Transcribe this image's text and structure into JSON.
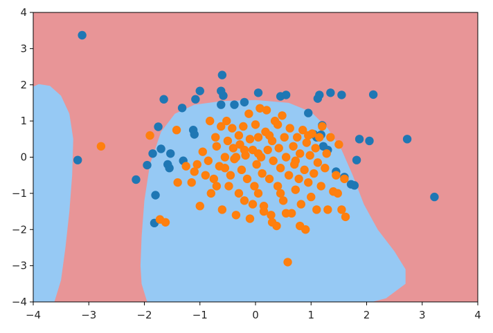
{
  "chart_data": {
    "type": "scatter",
    "title": "",
    "xlabel": "",
    "ylabel": "",
    "xlim": [
      -4,
      4
    ],
    "ylim": [
      -4,
      4
    ],
    "grid": false,
    "x_ticks": [
      -4,
      -3,
      -2,
      -1,
      0,
      1,
      2,
      3,
      4
    ],
    "y_ticks": [
      -4,
      -3,
      -2,
      -1,
      0,
      1,
      2,
      3,
      4
    ],
    "x_tick_labels": [
      "−4",
      "−3",
      "−2",
      "−1",
      "0",
      "1",
      "2",
      "3",
      "4"
    ],
    "y_tick_labels": [
      "−4",
      "−3",
      "−2",
      "−1",
      "0",
      "1",
      "2",
      "3",
      "4"
    ],
    "background_regions": [
      {
        "class": "blue",
        "color": "#96c9f4",
        "boundary": [
          [
            -3.9,
            -4
          ],
          [
            -4,
            -4
          ],
          [
            -4,
            1.95
          ],
          [
            -3.9,
            2.02
          ],
          [
            -3.7,
            1.97
          ],
          [
            -3.5,
            1.7
          ],
          [
            -3.35,
            1.2
          ],
          [
            -3.28,
            0.5
          ],
          [
            -3.3,
            -0.5
          ],
          [
            -3.35,
            -1.5
          ],
          [
            -3.42,
            -2.5
          ],
          [
            -3.5,
            -3.4
          ],
          [
            -3.62,
            -4
          ]
        ]
      },
      {
        "class": "blue",
        "color": "#96c9f4",
        "boundary": [
          [
            -1.95,
            -4
          ],
          [
            -2.05,
            -3.5
          ],
          [
            -2.07,
            -3.0
          ],
          [
            -2.05,
            -2.2
          ],
          [
            -2.0,
            -1.2
          ],
          [
            -1.9,
            -0.2
          ],
          [
            -1.7,
            0.7
          ],
          [
            -1.45,
            1.2
          ],
          [
            -1.1,
            1.45
          ],
          [
            -0.6,
            1.55
          ],
          [
            0,
            1.58
          ],
          [
            0.6,
            1.5
          ],
          [
            1.0,
            1.25
          ],
          [
            1.3,
            0.8
          ],
          [
            1.55,
            0.2
          ],
          [
            1.75,
            -0.5
          ],
          [
            1.95,
            -1.3
          ],
          [
            2.2,
            -2.0
          ],
          [
            2.5,
            -2.6
          ],
          [
            2.7,
            -3.1
          ],
          [
            2.7,
            -3.5
          ],
          [
            2.35,
            -3.9
          ],
          [
            2.1,
            -4
          ]
        ]
      }
    ],
    "region_colors": {
      "red": "#e89597",
      "blue": "#96c9f4"
    },
    "series": [
      {
        "color": "#1f77b4",
        "points": [
          [
            -3.12,
            3.37
          ],
          [
            -3.2,
            -0.08
          ],
          [
            -0.6,
            2.27
          ],
          [
            -0.62,
            1.83
          ],
          [
            -0.58,
            1.7
          ],
          [
            -1.0,
            1.83
          ],
          [
            -1.08,
            1.6
          ],
          [
            -1.32,
            1.36
          ],
          [
            -1.65,
            1.6
          ],
          [
            -1.75,
            0.84
          ],
          [
            -1.85,
            0.1
          ],
          [
            -1.95,
            -0.22
          ],
          [
            -2.15,
            -0.62
          ],
          [
            -1.7,
            0.23
          ],
          [
            -1.58,
            -0.2
          ],
          [
            -1.55,
            -0.3
          ],
          [
            -1.53,
            0.1
          ],
          [
            -1.3,
            -0.1
          ],
          [
            -1.12,
            0.75
          ],
          [
            -1.1,
            0.63
          ],
          [
            -1.8,
            -1.05
          ],
          [
            -1.82,
            -1.82
          ],
          [
            -0.62,
            1.45
          ],
          [
            -0.38,
            1.45
          ],
          [
            -0.2,
            1.52
          ],
          [
            0.05,
            1.78
          ],
          [
            0.45,
            1.68
          ],
          [
            0.55,
            1.72
          ],
          [
            0.95,
            1.22
          ],
          [
            1.15,
            1.72
          ],
          [
            1.12,
            1.62
          ],
          [
            1.35,
            1.78
          ],
          [
            1.55,
            1.72
          ],
          [
            2.12,
            1.73
          ],
          [
            1.2,
            0.88
          ],
          [
            1.05,
            0.63
          ],
          [
            1.1,
            0.55
          ],
          [
            1.18,
            0.62
          ],
          [
            1.22,
            0.3
          ],
          [
            1.3,
            0.2
          ],
          [
            1.45,
            -0.4
          ],
          [
            1.6,
            -0.55
          ],
          [
            1.72,
            -0.75
          ],
          [
            1.78,
            -0.78
          ],
          [
            1.82,
            -0.08
          ],
          [
            1.87,
            0.5
          ],
          [
            2.05,
            0.45
          ],
          [
            2.73,
            0.5
          ],
          [
            3.22,
            -1.1
          ]
        ]
      },
      {
        "color": "#ff7f0e",
        "points": [
          [
            -2.78,
            0.3
          ],
          [
            -1.9,
            0.6
          ],
          [
            -1.72,
            -1.72
          ],
          [
            -1.62,
            -1.8
          ],
          [
            -1.42,
            0.75
          ],
          [
            -1.4,
            -0.7
          ],
          [
            -1.25,
            -0.25
          ],
          [
            -1.15,
            -0.7
          ],
          [
            -1.1,
            -0.4
          ],
          [
            -1.05,
            -0.2
          ],
          [
            -1.0,
            -1.35
          ],
          [
            -0.95,
            0.15
          ],
          [
            -0.9,
            -0.5
          ],
          [
            -0.85,
            -0.1
          ],
          [
            -0.82,
            1.0
          ],
          [
            -0.8,
            -1.0
          ],
          [
            -0.75,
            -0.6
          ],
          [
            -0.72,
            0.55
          ],
          [
            -0.7,
            0.3
          ],
          [
            -0.65,
            -0.25
          ],
          [
            -0.62,
            0.85
          ],
          [
            -0.6,
            -1.45
          ],
          [
            -0.55,
            0.0
          ],
          [
            -0.55,
            -0.3
          ],
          [
            -0.52,
            1.0
          ],
          [
            -0.5,
            0.45
          ],
          [
            -0.48,
            -0.8
          ],
          [
            -0.45,
            -0.5
          ],
          [
            -0.42,
            0.8
          ],
          [
            -0.4,
            0.25
          ],
          [
            -0.38,
            -0.05
          ],
          [
            -0.35,
            -1.6
          ],
          [
            -0.3,
            0.6
          ],
          [
            -0.3,
            -1.0
          ],
          [
            -0.28,
            0.35
          ],
          [
            -0.25,
            -0.35
          ],
          [
            -0.22,
            0.85
          ],
          [
            -0.2,
            -1.2
          ],
          [
            -0.18,
            0.05
          ],
          [
            -0.15,
            -0.6
          ],
          [
            -0.12,
            1.2
          ],
          [
            -0.1,
            0.5
          ],
          [
            -0.1,
            -1.7
          ],
          [
            -0.05,
            0.2
          ],
          [
            -0.02,
            -0.8
          ],
          [
            0.0,
            0.9
          ],
          [
            0.02,
            -0.2
          ],
          [
            0.05,
            0.55
          ],
          [
            0.05,
            -1.0
          ],
          [
            0.08,
            1.35
          ],
          [
            0.1,
            0.0
          ],
          [
            0.12,
            -0.45
          ],
          [
            0.15,
            -1.35
          ],
          [
            0.18,
            0.7
          ],
          [
            0.2,
            1.3
          ],
          [
            0.22,
            0.2
          ],
          [
            0.25,
            -0.6
          ],
          [
            0.28,
            -1.6
          ],
          [
            0.3,
            0.45
          ],
          [
            0.32,
            -0.1
          ],
          [
            0.35,
            1.0
          ],
          [
            0.38,
            -1.9
          ],
          [
            0.4,
            -0.8
          ],
          [
            0.42,
            0.25
          ],
          [
            0.45,
            -0.3
          ],
          [
            0.48,
            1.15
          ],
          [
            0.5,
            -1.2
          ],
          [
            0.52,
            0.55
          ],
          [
            0.55,
            0.0
          ],
          [
            0.58,
            -2.9
          ],
          [
            0.6,
            -0.5
          ],
          [
            0.62,
            0.8
          ],
          [
            0.65,
            -1.55
          ],
          [
            0.68,
            0.3
          ],
          [
            0.7,
            -0.2
          ],
          [
            0.72,
            -0.9
          ],
          [
            0.75,
            0.55
          ],
          [
            0.78,
            -0.6
          ],
          [
            0.8,
            0.1
          ],
          [
            0.82,
            -1.3
          ],
          [
            0.85,
            0.75
          ],
          [
            0.88,
            -0.35
          ],
          [
            0.9,
            -2.0
          ],
          [
            0.92,
            0.4
          ],
          [
            0.95,
            -0.7
          ],
          [
            0.98,
            0.05
          ],
          [
            1.0,
            -1.1
          ],
          [
            1.02,
            0.65
          ],
          [
            1.05,
            -0.45
          ],
          [
            1.08,
            0.25
          ],
          [
            1.1,
            -1.45
          ],
          [
            1.12,
            -0.15
          ],
          [
            1.15,
            0.55
          ],
          [
            1.18,
            -0.8
          ],
          [
            1.2,
            0.85
          ],
          [
            1.25,
            -0.3
          ],
          [
            1.28,
            0.1
          ],
          [
            1.3,
            -1.45
          ],
          [
            1.35,
            0.55
          ],
          [
            1.4,
            -0.95
          ],
          [
            1.45,
            -0.5
          ],
          [
            1.5,
            0.35
          ],
          [
            1.55,
            -1.45
          ],
          [
            1.6,
            -0.6
          ],
          [
            1.62,
            -1.65
          ],
          [
            1.48,
            -1.0
          ],
          [
            0.8,
            -1.9
          ],
          [
            0.55,
            -1.55
          ],
          [
            0.3,
            -1.8
          ],
          [
            -0.05,
            -1.3
          ],
          [
            0.15,
            -1.5
          ],
          [
            -0.2,
            0.2
          ],
          [
            0.25,
            0.6
          ],
          [
            0.4,
            0.9
          ],
          [
            0.95,
            0.6
          ],
          [
            -0.7,
            -0.8
          ],
          [
            -0.35,
            0.0
          ],
          [
            0.45,
            -1.0
          ],
          [
            0.72,
            -0.1
          ],
          [
            0.05,
            0.1
          ]
        ]
      }
    ]
  }
}
